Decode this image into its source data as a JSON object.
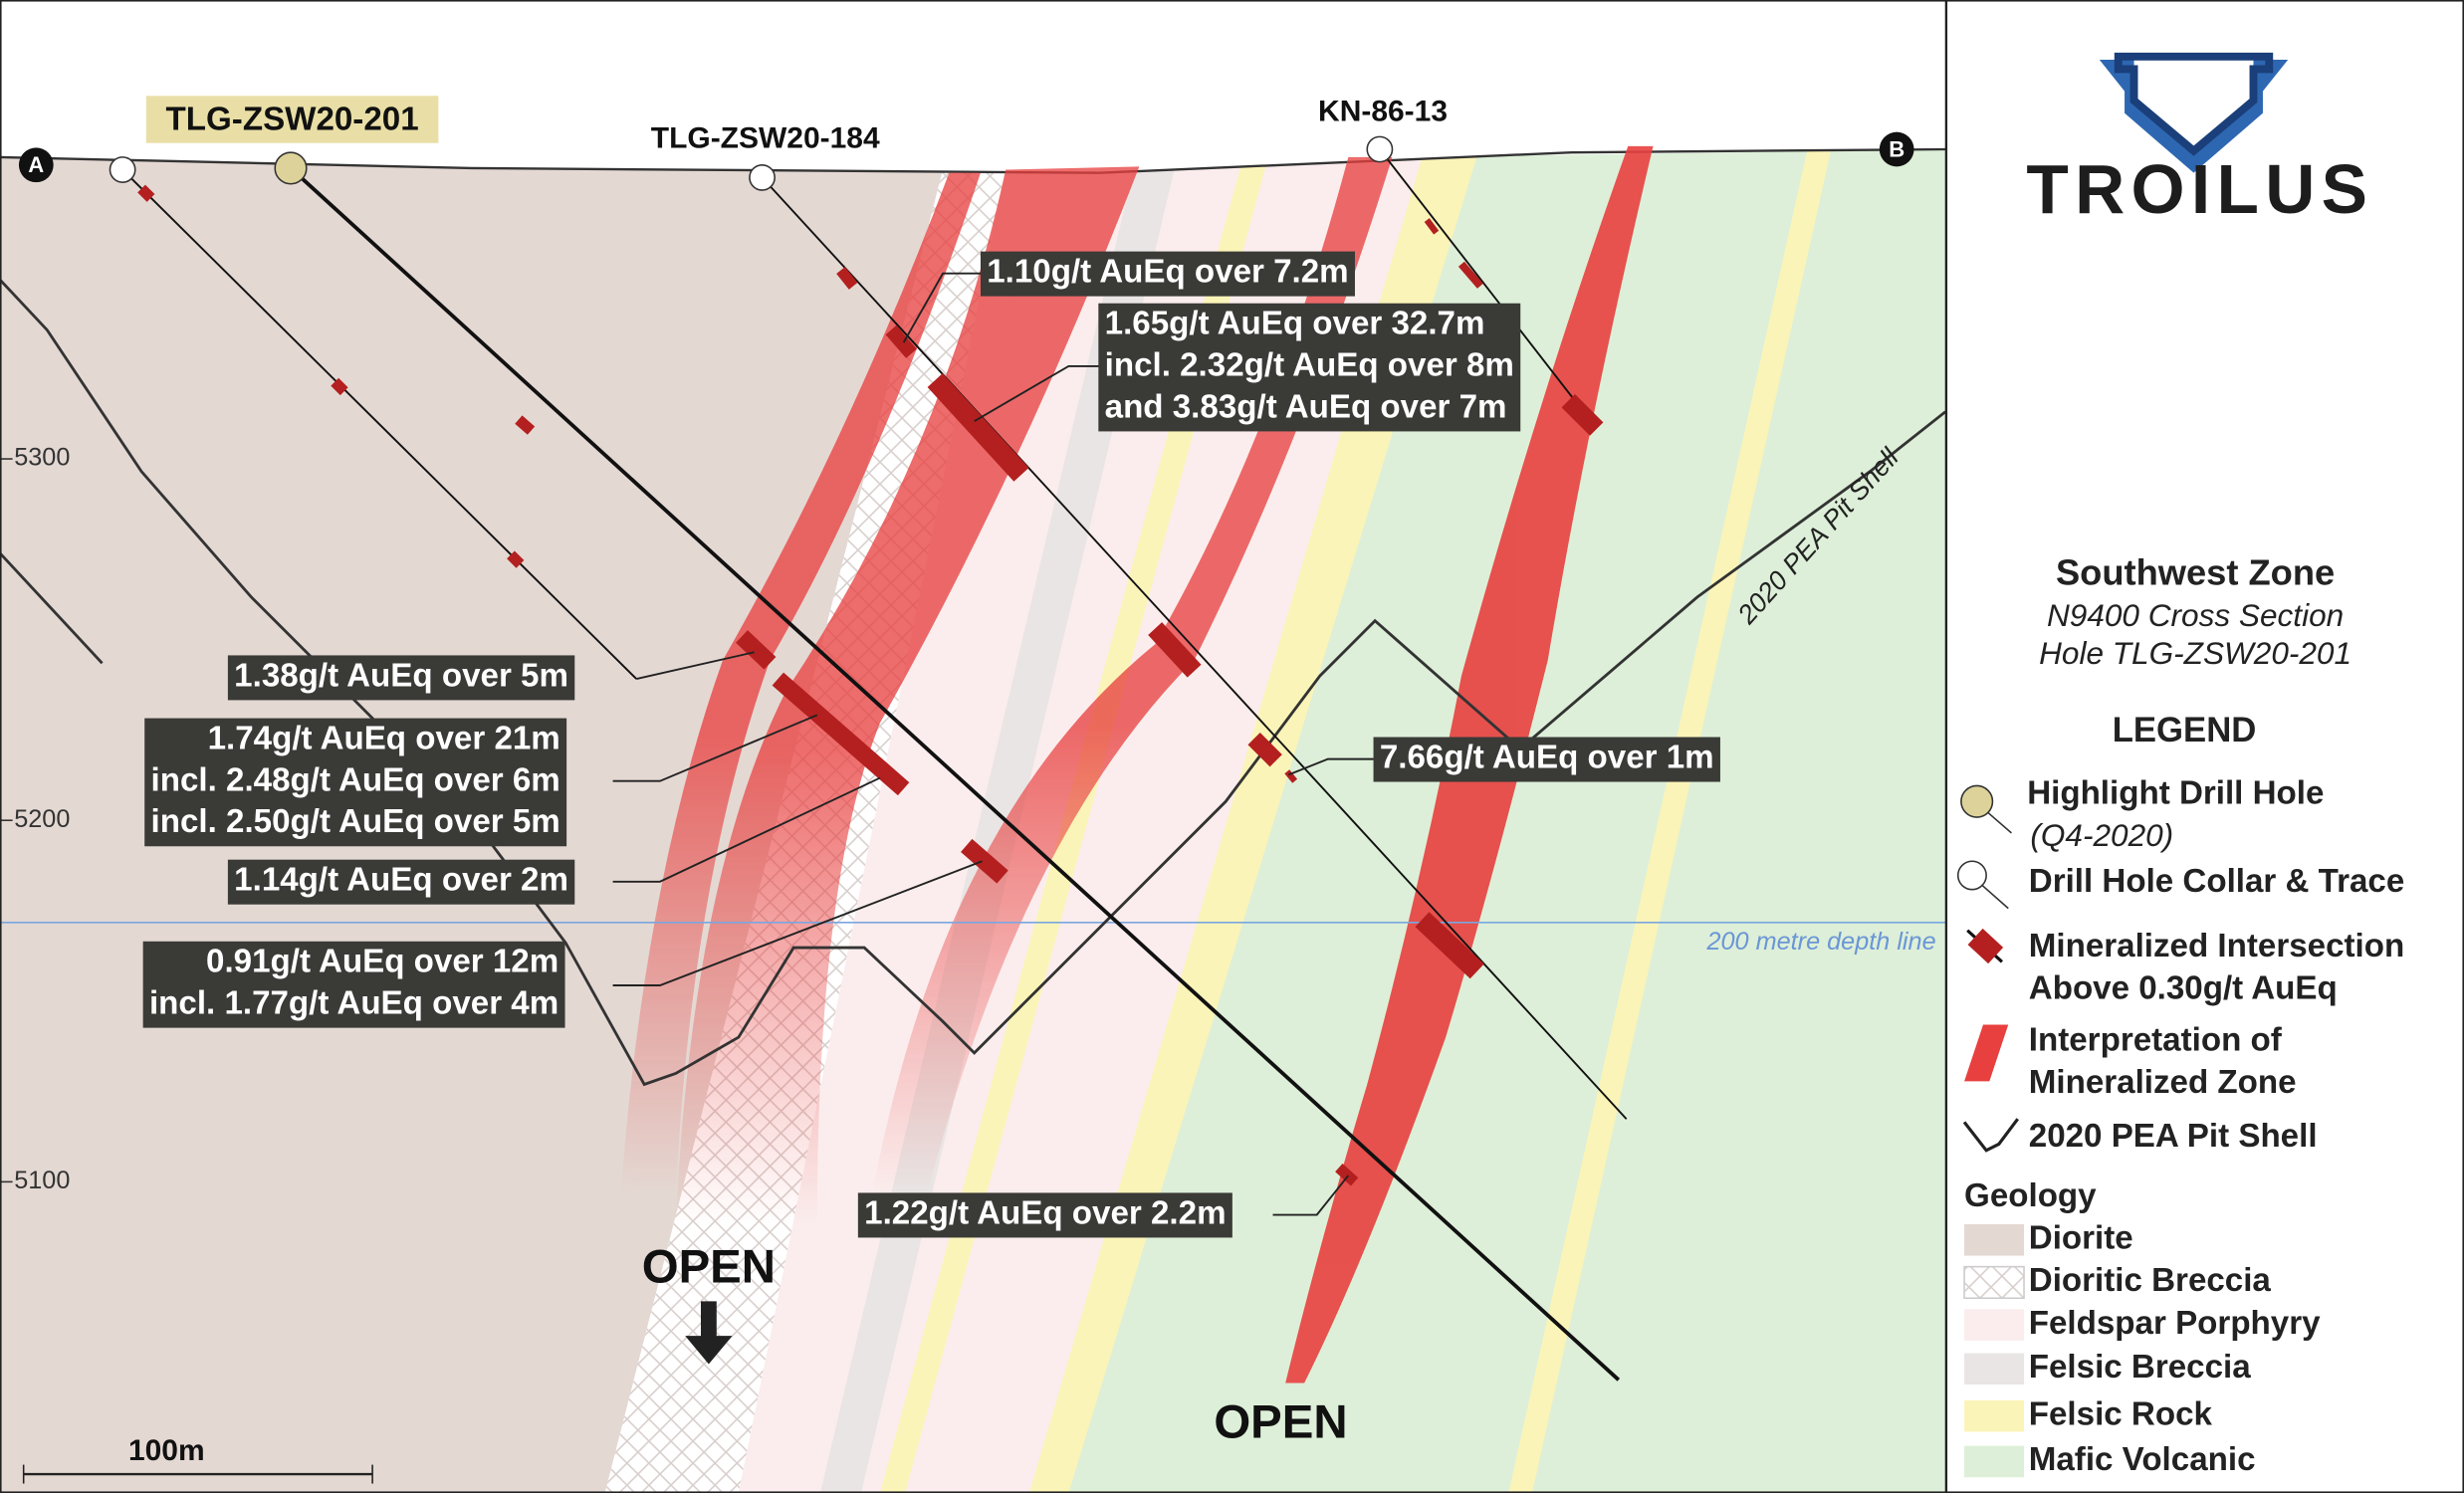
{
  "section_points": [
    "A",
    "B"
  ],
  "drill_holes": [
    "TLG-ZSW20-201",
    "TLG-ZSW20-184",
    "KN-86-13"
  ],
  "elevations": [
    "5300",
    "5200",
    "5100"
  ],
  "intercepts": [
    {
      "lines": [
        "1.10g/t AuEq over 7.2m"
      ]
    },
    {
      "lines": [
        "1.65g/t AuEq over 32.7m",
        "incl. 2.32g/t AuEq over 8m",
        "and 3.83g/t AuEq over 7m"
      ]
    },
    {
      "lines": [
        "1.38g/t AuEq over 5m"
      ]
    },
    {
      "lines": [
        "1.74g/t AuEq over 21m",
        "incl. 2.48g/t AuEq over 6m",
        "incl. 2.50g/t AuEq over 5m"
      ]
    },
    {
      "lines": [
        "1.14g/t AuEq over 2m"
      ]
    },
    {
      "lines": [
        "0.91g/t AuEq over 12m",
        "incl. 1.77g/t AuEq over 4m"
      ]
    },
    {
      "lines": [
        "7.66g/t AuEq over 1m"
      ]
    },
    {
      "lines": [
        "1.22g/t AuEq over 2.2m"
      ]
    }
  ],
  "annotations": {
    "pit_shell": "2020 PEA Pit Shell",
    "depth_line": "200 metre depth line",
    "open_left": "OPEN",
    "open_bottom": "OPEN",
    "scale": "100m"
  },
  "logo": "TROILUS",
  "section_info": {
    "title": "Southwest Zone",
    "lines": [
      "N9400 Cross Section",
      "Hole TLG-ZSW20-201"
    ]
  },
  "legend": {
    "title": "LEGEND",
    "highlight_hole": [
      "Highlight Drill Hole",
      "(Q4-2020)"
    ],
    "collar": "Drill Hole Collar & Trace",
    "intersection": [
      "Mineralized Intersection",
      "Above 0.30g/t AuEq"
    ],
    "interpretation": [
      "Interpretation of",
      "Mineralized Zone"
    ],
    "pit_shell": "2020 PEA Pit Shell",
    "geology_title": "Geology",
    "geology": [
      "Diorite",
      "Dioritic Breccia",
      "Feldspar Porphyry",
      "Felsic Breccia",
      "Felsic Rock",
      "Mafic Volcanic"
    ]
  }
}
